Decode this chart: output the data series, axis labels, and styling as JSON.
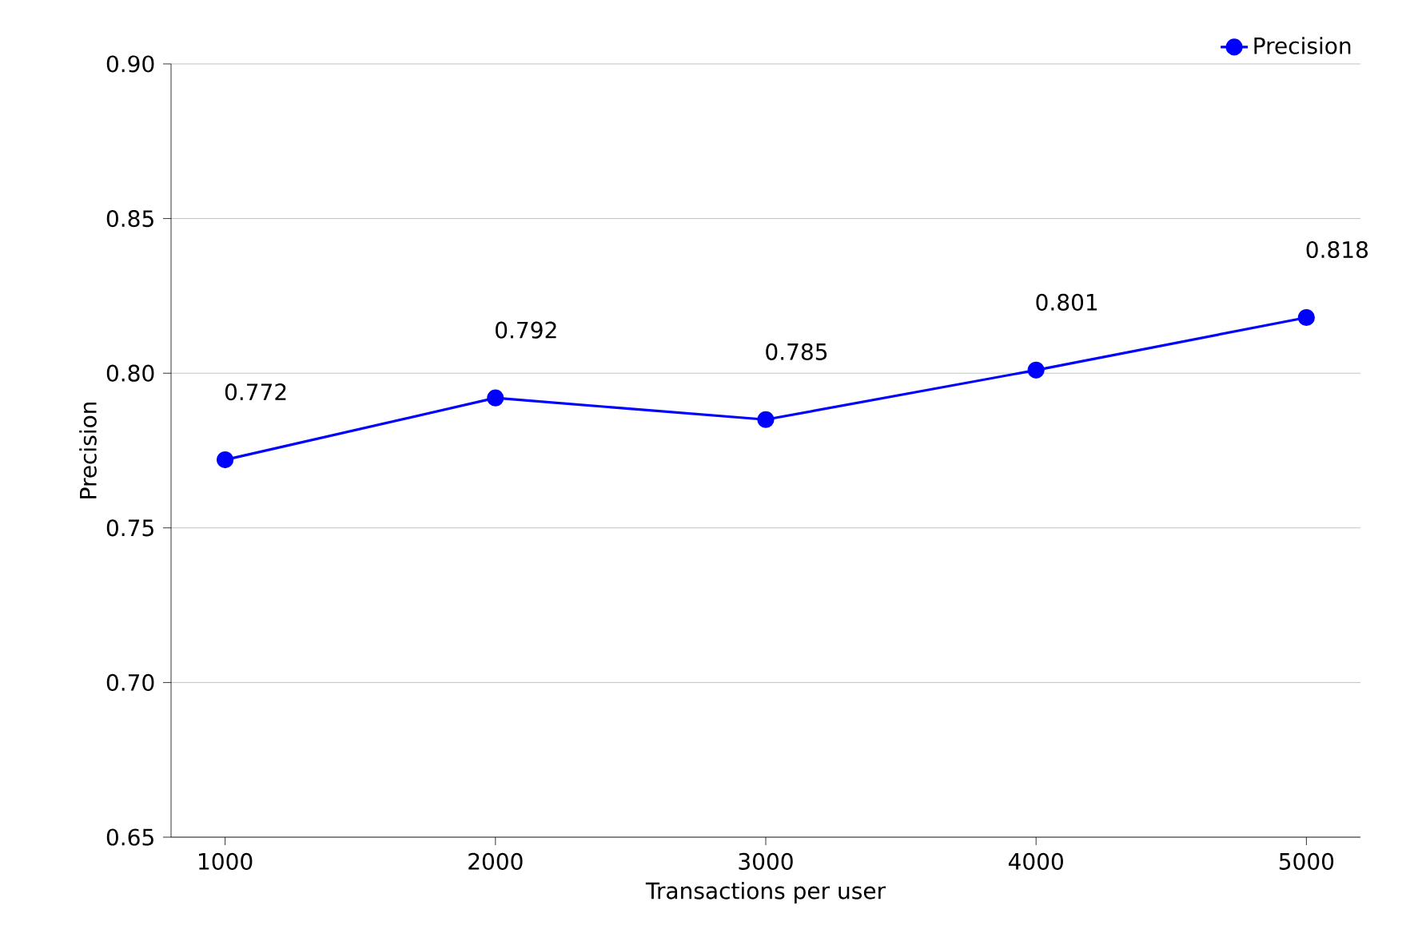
{
  "chart_data": {
    "type": "line",
    "xlabel": "Transactions per user",
    "ylabel": "Precision",
    "x": [
      1000,
      2000,
      3000,
      4000,
      5000
    ],
    "series": [
      {
        "name": "Precision",
        "color": "#0000ff",
        "values": [
          0.772,
          0.792,
          0.785,
          0.801,
          0.818
        ]
      }
    ],
    "xlim": [
      800,
      5200
    ],
    "xticks": [
      1000,
      2000,
      3000,
      4000,
      5000
    ],
    "ylim": [
      0.65,
      0.9
    ],
    "yticks": [
      {
        "value": 0.65,
        "label": "0.65"
      },
      {
        "value": 0.7,
        "label": "0.70"
      },
      {
        "value": 0.75,
        "label": "0.75"
      },
      {
        "value": 0.8,
        "label": "0.80"
      },
      {
        "value": 0.85,
        "label": "0.85"
      },
      {
        "value": 0.9,
        "label": "0.90"
      }
    ],
    "grid": "y",
    "legend": "top right",
    "marker": "circle",
    "line_style": "solid",
    "data_labels": true
  }
}
